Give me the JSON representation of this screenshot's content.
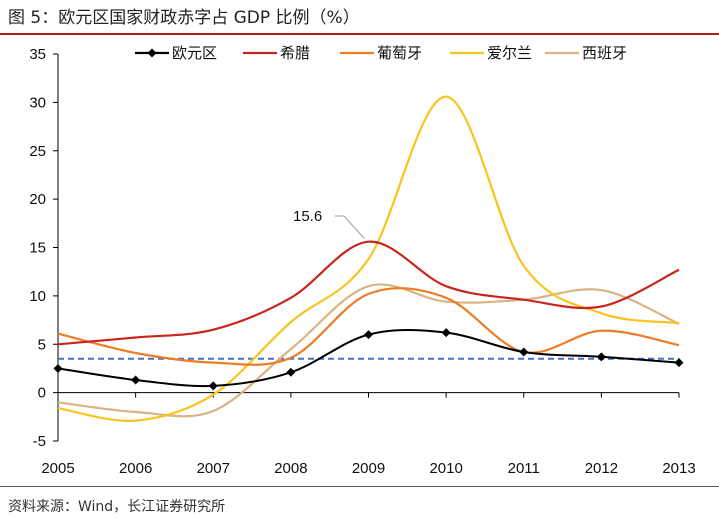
{
  "title": "图 5：欧元区国家财政赤字占 GDP 比例（%）",
  "source": "资料来源：Wind，长江证券研究所",
  "chart_data": {
    "type": "line",
    "x": [
      2005,
      2006,
      2007,
      2008,
      2009,
      2010,
      2011,
      2012,
      2013
    ],
    "ylim": [
      -5,
      35
    ],
    "yticks": [
      -5,
      0,
      5,
      10,
      15,
      20,
      25,
      30,
      35
    ],
    "grid": false,
    "legend": "top",
    "series": [
      {
        "name": "欧元区",
        "color": "#000000",
        "markers": true,
        "values": [
          2.5,
          1.3,
          0.7,
          2.1,
          6.0,
          6.2,
          4.2,
          3.7,
          3.1
        ]
      },
      {
        "name": "希腊",
        "color": "#c8251d",
        "markers": false,
        "values": [
          5.0,
          5.7,
          6.5,
          9.8,
          15.6,
          11.0,
          9.6,
          8.9,
          12.7
        ]
      },
      {
        "name": "葡萄牙",
        "color": "#ee7b26",
        "markers": false,
        "values": [
          6.1,
          4.1,
          3.1,
          3.6,
          10.2,
          9.8,
          4.2,
          6.4,
          4.9
        ]
      },
      {
        "name": "爱尔兰",
        "color": "#f7c51e",
        "markers": false,
        "values": [
          -1.6,
          -2.9,
          -0.2,
          7.3,
          13.8,
          30.6,
          13.1,
          8.2,
          7.2
        ]
      },
      {
        "name": "西班牙",
        "color": "#d9b482",
        "markers": false,
        "values": [
          -1.0,
          -2.0,
          -1.9,
          4.5,
          11.0,
          9.4,
          9.6,
          10.6,
          7.1
        ]
      }
    ],
    "reference_line": {
      "value": 3.5,
      "color": "#4472c4",
      "style": "dashed"
    },
    "annotation": {
      "label": "15.6",
      "series": "希腊",
      "x": 2009,
      "y": 15.6
    }
  }
}
